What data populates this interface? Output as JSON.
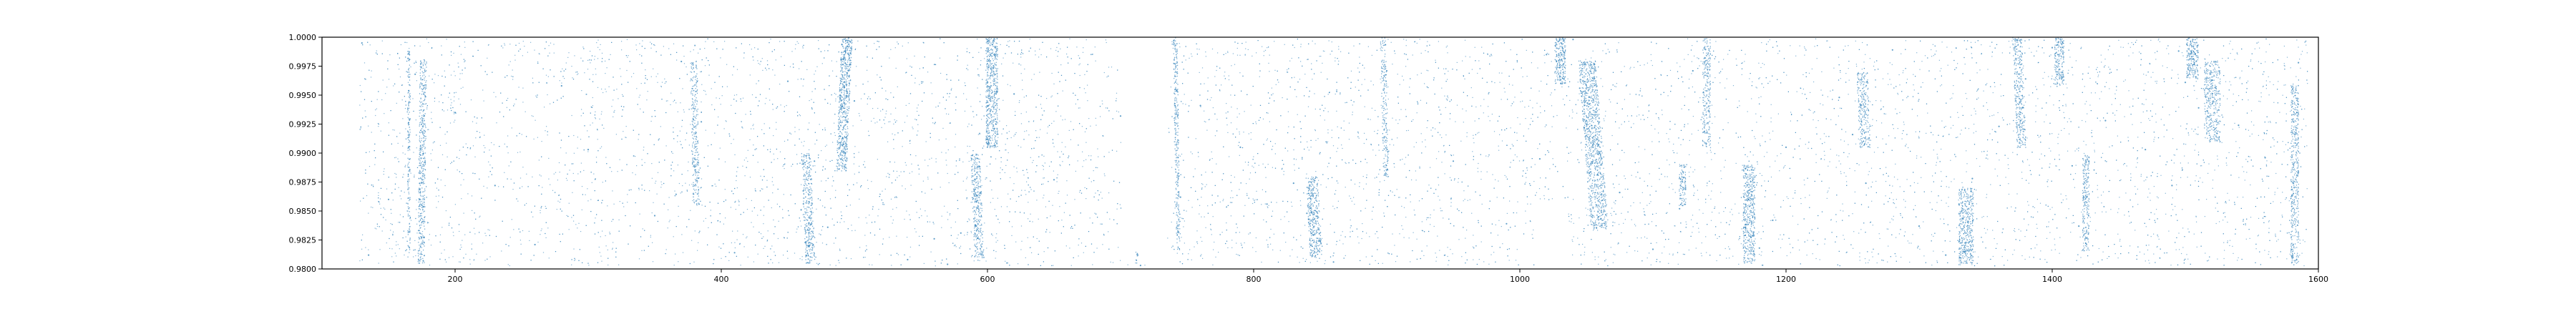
{
  "chart_data": {
    "type": "scatter",
    "title": "",
    "xlabel": "",
    "ylabel": "",
    "xlim": [
      100,
      1600
    ],
    "ylim": [
      0.98,
      1.0
    ],
    "xticks": [
      200,
      400,
      600,
      800,
      1000,
      1200,
      1400,
      1600
    ],
    "yticks": [
      0.98,
      0.9825,
      0.985,
      0.9875,
      0.99,
      0.9925,
      0.995,
      0.9975,
      1.0
    ],
    "xtick_labels": [
      "200",
      "400",
      "600",
      "800",
      "1000",
      "1200",
      "1400",
      "1600"
    ],
    "ytick_labels": [
      "0.9800",
      "0.9825",
      "0.9850",
      "0.9875",
      "0.9900",
      "0.9925",
      "0.9950",
      "0.9975",
      "1.0000"
    ],
    "grid": false,
    "legend": false,
    "marker_color": "#1f77b4",
    "series": [
      {
        "x": [
          130,
          135,
          150,
          165,
          170,
          175,
          200,
          230,
          260,
          280,
          300,
          350,
          370,
          380,
          385,
          410,
          450,
          460,
          470,
          480,
          490,
          495,
          500,
          540,
          560,
          570,
          580,
          590,
          600,
          605,
          620,
          650,
          700,
          715,
          740,
          745,
          760,
          790,
          810,
          830,
          840,
          850,
          860,
          900,
          950,
          990,
          1015,
          1020,
          1030,
          1040,
          1045,
          1050,
          1060,
          1075,
          1100,
          1120,
          1130,
          1140,
          1170,
          1180,
          1190,
          1200,
          1240,
          1250,
          1260,
          1280,
          1300,
          1320,
          1330,
          1340,
          1360,
          1380,
          1400,
          1415,
          1420,
          1440,
          1470,
          1490,
          1495,
          1500,
          1510,
          1520,
          1540,
          1560,
          1580,
          1585
        ],
        "y": [
          0.9995,
          0.9812,
          0.986,
          0.9905,
          0.9968,
          0.9855,
          0.9935,
          0.9872,
          0.9821,
          0.9958,
          0.9903,
          0.9846,
          0.9979,
          0.9888,
          0.9927,
          0.9814,
          0.9962,
          0.9851,
          0.9893,
          0.9836,
          0.9981,
          0.9992,
          0.9945,
          0.9808,
          0.9826,
          0.9804,
          0.9831,
          0.9867,
          0.9912,
          0.9985,
          0.9951,
          0.9877,
          0.9932,
          0.9803,
          0.9997,
          0.9862,
          0.9941,
          0.9905,
          0.9856,
          0.9874,
          0.9848,
          0.9824,
          0.9806,
          0.9971,
          0.9893,
          0.9839,
          0.9895,
          0.9985,
          0.9966,
          0.9998,
          0.9956,
          0.9928,
          0.9901,
          0.9866,
          0.9817,
          0.9852,
          0.9971,
          0.9933,
          0.9882,
          0.9818,
          0.9842,
          0.9905,
          0.9948,
          0.9916,
          0.9874,
          0.9989,
          0.9837,
          0.9812,
          0.9856,
          0.9878,
          0.9923,
          0.9964,
          0.9991,
          0.9889,
          0.9837,
          0.9928,
          0.9903,
          0.9872,
          0.9988,
          0.9961,
          0.9939,
          0.9963,
          0.9924,
          0.9896,
          0.9854,
          0.9978
        ]
      }
    ],
    "stripes": [
      {
        "x": 165,
        "w": 2,
        "y0": 0.981,
        "y1": 0.999,
        "d": 0.45,
        "tilt": 0
      },
      {
        "x": 175,
        "w": 5,
        "y0": 0.9805,
        "y1": 0.998,
        "d": 0.5,
        "tilt": -3
      },
      {
        "x": 380,
        "w": 5,
        "y0": 0.9855,
        "y1": 0.998,
        "d": 0.4,
        "tilt": 4
      },
      {
        "x": 465,
        "w": 7,
        "y0": 0.9805,
        "y1": 0.99,
        "d": 0.5,
        "tilt": 6
      },
      {
        "x": 492,
        "w": 8,
        "y0": 0.9885,
        "y1": 1.0,
        "d": 0.65,
        "tilt": -8
      },
      {
        "x": 592,
        "w": 7,
        "y0": 0.981,
        "y1": 0.99,
        "d": 0.5,
        "tilt": 6
      },
      {
        "x": 603,
        "w": 9,
        "y0": 0.9905,
        "y1": 1.0,
        "d": 0.6,
        "tilt": 0
      },
      {
        "x": 712,
        "w": 2,
        "y0": 0.9805,
        "y1": 0.9815,
        "d": 0.6,
        "tilt": 0
      },
      {
        "x": 742,
        "w": 3,
        "y0": 0.9815,
        "y1": 1.0,
        "d": 0.5,
        "tilt": 5
      },
      {
        "x": 845,
        "w": 9,
        "y0": 0.981,
        "y1": 0.988,
        "d": 0.55,
        "tilt": 6
      },
      {
        "x": 898,
        "w": 4,
        "y0": 0.988,
        "y1": 1.0,
        "d": 0.4,
        "tilt": 4
      },
      {
        "x": 1030,
        "w": 8,
        "y0": 0.996,
        "y1": 1.0,
        "d": 0.65,
        "tilt": 0
      },
      {
        "x": 1055,
        "w": 13,
        "y0": 0.9835,
        "y1": 0.998,
        "d": 0.5,
        "tilt": 18
      },
      {
        "x": 1122,
        "w": 5,
        "y0": 0.9855,
        "y1": 0.989,
        "d": 0.55,
        "tilt": 0
      },
      {
        "x": 1140,
        "w": 6,
        "y0": 0.9905,
        "y1": 1.0,
        "d": 0.4,
        "tilt": 0
      },
      {
        "x": 1172,
        "w": 9,
        "y0": 0.9805,
        "y1": 0.989,
        "d": 0.55,
        "tilt": 0
      },
      {
        "x": 1258,
        "w": 8,
        "y0": 0.9905,
        "y1": 0.997,
        "d": 0.45,
        "tilt": 4
      },
      {
        "x": 1335,
        "w": 11,
        "y0": 0.9805,
        "y1": 0.987,
        "d": 0.55,
        "tilt": 0
      },
      {
        "x": 1375,
        "w": 7,
        "y0": 0.9905,
        "y1": 1.0,
        "d": 0.45,
        "tilt": 6
      },
      {
        "x": 1405,
        "w": 7,
        "y0": 0.996,
        "y1": 1.0,
        "d": 0.6,
        "tilt": 0
      },
      {
        "x": 1425,
        "w": 5,
        "y0": 0.9815,
        "y1": 0.99,
        "d": 0.5,
        "tilt": 0
      },
      {
        "x": 1505,
        "w": 9,
        "y0": 0.9965,
        "y1": 1.0,
        "d": 0.65,
        "tilt": 0
      },
      {
        "x": 1520,
        "w": 12,
        "y0": 0.991,
        "y1": 0.998,
        "d": 0.4,
        "tilt": 0
      },
      {
        "x": 1582,
        "w": 6,
        "y0": 0.9805,
        "y1": 0.996,
        "d": 0.45,
        "tilt": 0
      }
    ],
    "blank_regions": [
      {
        "x0": 700,
        "x1": 735,
        "y0": 0.9805,
        "y1": 1.0
      },
      {
        "x0": 1010,
        "x1": 1035,
        "y0": 0.9805,
        "y1": 0.9855
      }
    ]
  }
}
